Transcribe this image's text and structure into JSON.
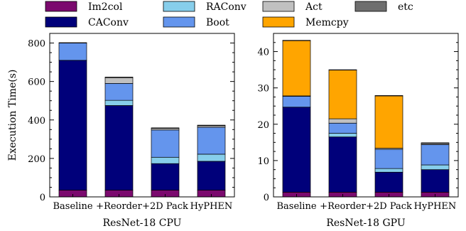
{
  "legend": [
    {
      "key": "im2col",
      "label": "Im2col",
      "color": "#7b0a6e"
    },
    {
      "key": "raconv",
      "label": "RAConv",
      "color": "#87ceeb"
    },
    {
      "key": "act",
      "label": "Act",
      "color": "#c0c0c0"
    },
    {
      "key": "etc",
      "label": "etc",
      "color": "#6e6e6e"
    },
    {
      "key": "caconv",
      "label": "CAConv",
      "color": "#00007a"
    },
    {
      "key": "boot",
      "label": "Boot",
      "color": "#6495ed"
    },
    {
      "key": "memcpy",
      "label": "Memcpy",
      "color": "#ffa500"
    }
  ],
  "chart_data": [
    {
      "type": "bar",
      "stacked": true,
      "xlabel": "ResNet-18 CPU",
      "ylabel": "Execution Time(s)",
      "ylim": [
        0,
        850
      ],
      "yticks": [
        0,
        200,
        400,
        600,
        800
      ],
      "categories": [
        "Baseline",
        "+Reorder",
        "+2D Pack",
        "HyPHEN"
      ],
      "series": [
        {
          "name": "Im2col",
          "key": "im2col",
          "values": [
            35,
            35,
            35,
            35
          ]
        },
        {
          "name": "CAConv",
          "key": "caconv",
          "values": [
            675,
            440,
            138,
            150
          ]
        },
        {
          "name": "RAConv",
          "key": "raconv",
          "values": [
            0,
            27,
            33,
            37
          ]
        },
        {
          "name": "Boot",
          "key": "boot",
          "values": [
            90,
            88,
            142,
            140
          ]
        },
        {
          "name": "Act",
          "key": "act",
          "values": [
            0,
            30,
            8,
            8
          ]
        },
        {
          "name": "Memcpy",
          "key": "memcpy",
          "values": [
            0,
            0,
            0,
            0
          ]
        },
        {
          "name": "etc",
          "key": "etc",
          "values": [
            2,
            3,
            3,
            3
          ]
        }
      ]
    },
    {
      "type": "bar",
      "stacked": true,
      "xlabel": "ResNet-18 GPU",
      "ylabel": "",
      "ylim": [
        0,
        45
      ],
      "yticks": [
        0,
        10,
        20,
        30,
        40
      ],
      "categories": [
        "Baseline",
        "+Reorder",
        "+2D Pack",
        "HyPHEN"
      ],
      "series": [
        {
          "name": "Im2col",
          "key": "im2col",
          "values": [
            1.3,
            1.3,
            1.3,
            1.3
          ]
        },
        {
          "name": "CAConv",
          "key": "caconv",
          "values": [
            23.4,
            15.2,
            5.5,
            6.2
          ]
        },
        {
          "name": "RAConv",
          "key": "raconv",
          "values": [
            0,
            1.0,
            1.0,
            1.3
          ]
        },
        {
          "name": "Boot",
          "key": "boot",
          "values": [
            3.0,
            2.8,
            5.3,
            5.6
          ]
        },
        {
          "name": "Act",
          "key": "act",
          "values": [
            0.1,
            1.2,
            0.3,
            0.3
          ]
        },
        {
          "name": "Memcpy",
          "key": "memcpy",
          "values": [
            15.2,
            13.4,
            14.4,
            0
          ]
        },
        {
          "name": "etc",
          "key": "etc",
          "values": [
            0.1,
            0.1,
            0.1,
            0.2
          ]
        }
      ]
    }
  ]
}
